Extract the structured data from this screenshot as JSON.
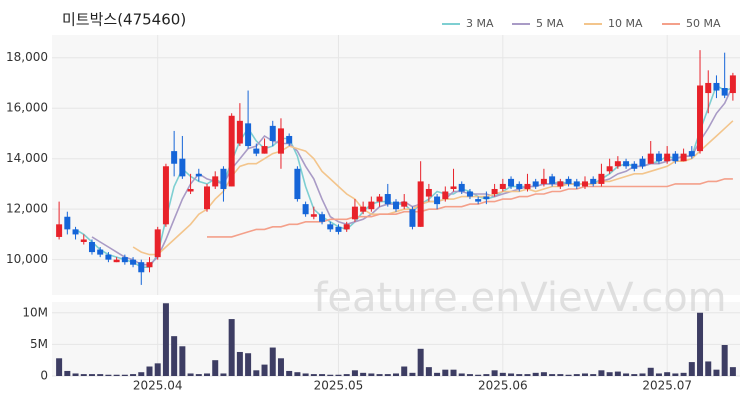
{
  "chart_data": {
    "type": "candlestick",
    "title": "미트박스(475460)",
    "watermark": "feature.enVievV.com",
    "categories": [
      null,
      null,
      null,
      null,
      null,
      null,
      null,
      null,
      null,
      null,
      null,
      null,
      "2025.04",
      null,
      null,
      null,
      null,
      null,
      null,
      null,
      null,
      null,
      null,
      null,
      null,
      null,
      null,
      null,
      null,
      null,
      null,
      null,
      null,
      null,
      "2025.05",
      null,
      null,
      null,
      null,
      null,
      null,
      null,
      null,
      null,
      null,
      null,
      null,
      null,
      null,
      null,
      null,
      null,
      null,
      null,
      "2025.06",
      null,
      null,
      null,
      null,
      null,
      null,
      null,
      null,
      null,
      null,
      null,
      null,
      null,
      null,
      null,
      null,
      null,
      null,
      null,
      "2025.07",
      null,
      null,
      null,
      null,
      null,
      null,
      null,
      null
    ],
    "open": [
      10900,
      11700,
      11200,
      10700,
      10700,
      10400,
      10200,
      9900,
      10100,
      10000,
      9900,
      9700,
      10100,
      11400,
      14300,
      14000,
      12700,
      13400,
      12000,
      12900,
      13600,
      12900,
      14600,
      15400,
      14400,
      14200,
      15300,
      14200,
      14900,
      13600,
      12200,
      11700,
      11800,
      11400,
      11300,
      11200,
      11600,
      11900,
      12000,
      12300,
      12600,
      12300,
      12100,
      12000,
      11300,
      12500,
      12500,
      12400,
      12800,
      13000,
      12700,
      12400,
      12500,
      12600,
      12800,
      13200,
      13000,
      12800,
      13100,
      13000,
      13300,
      12900,
      13200,
      13100,
      12900,
      13200,
      13000,
      13500,
      13700,
      13900,
      13800,
      14000,
      13800,
      14200,
      13900,
      14200,
      13900,
      14300,
      14300,
      16600,
      17000,
      16800,
      16600
    ],
    "high": [
      12300,
      11900,
      11300,
      11000,
      10800,
      10500,
      10300,
      10100,
      10200,
      10100,
      10000,
      10100,
      11300,
      13800,
      15100,
      14900,
      13400,
      13600,
      13000,
      13500,
      13700,
      15800,
      16200,
      16700,
      14600,
      14800,
      15500,
      15600,
      15000,
      13700,
      12300,
      12100,
      11900,
      11500,
      11400,
      11500,
      12400,
      12300,
      12500,
      12600,
      13000,
      12400,
      12600,
      12100,
      13900,
      13000,
      12600,
      12900,
      13600,
      13100,
      12800,
      12500,
      12700,
      13000,
      13200,
      13300,
      13100,
      13400,
      13200,
      13600,
      13400,
      13200,
      13300,
      13200,
      13300,
      13300,
      13800,
      14000,
      14100,
      14000,
      13900,
      14100,
      14700,
      14300,
      14500,
      14300,
      14400,
      14500,
      18300,
      17500,
      17300,
      18200,
      17400
    ],
    "low": [
      10800,
      11000,
      10800,
      10600,
      10200,
      10100,
      9900,
      9900,
      9800,
      9700,
      9000,
      9500,
      10000,
      11300,
      13300,
      13200,
      12600,
      13100,
      11900,
      12800,
      12300,
      12900,
      14500,
      14400,
      14100,
      14200,
      14500,
      13600,
      14500,
      12300,
      11700,
      11600,
      11400,
      11100,
      11000,
      11100,
      11500,
      11800,
      11900,
      12100,
      12100,
      11900,
      12000,
      11200,
      11300,
      12300,
      12000,
      12300,
      12700,
      12600,
      12400,
      12200,
      12200,
      12500,
      12700,
      12800,
      12700,
      12700,
      12800,
      12900,
      12900,
      12800,
      12900,
      12800,
      12800,
      12900,
      12900,
      13400,
      13600,
      13600,
      13500,
      13600,
      13800,
      13800,
      13800,
      13800,
      13900,
      14000,
      14200,
      15800,
      16400,
      16400,
      16300
    ],
    "close": [
      11400,
      11200,
      11000,
      10800,
      10300,
      10200,
      10000,
      10000,
      9900,
      9800,
      9500,
      9900,
      11200,
      13700,
      13800,
      13300,
      12800,
      13300,
      12900,
      13300,
      12800,
      15700,
      15500,
      14500,
      14200,
      14500,
      14700,
      15200,
      14600,
      12400,
      11800,
      11800,
      11500,
      11200,
      11100,
      11400,
      12100,
      12100,
      12300,
      12500,
      12200,
      12000,
      12300,
      11300,
      13100,
      12800,
      12200,
      12700,
      12900,
      12700,
      12500,
      12300,
      12400,
      12800,
      13000,
      12900,
      12800,
      13000,
      12900,
      13200,
      13000,
      13100,
      13000,
      12900,
      13100,
      13000,
      13400,
      13700,
      13900,
      13700,
      13600,
      13700,
      14200,
      13900,
      14200,
      13900,
      14200,
      14100,
      16900,
      17000,
      16700,
      16500,
      17300
    ],
    "up_color": "#e8222a",
    "down_color": "#1565d8",
    "series": [
      {
        "name": "3 MA",
        "color": "#7ecfd2",
        "values": [
          null,
          null,
          11200,
          11000,
          10700,
          10400,
          10200,
          10100,
          10000,
          9900,
          9700,
          9700,
          10200,
          11600,
          12900,
          13600,
          13300,
          13100,
          13000,
          13200,
          13000,
          13900,
          14700,
          15200,
          14700,
          14400,
          14500,
          14800,
          14800,
          14100,
          12900,
          12000,
          11700,
          11500,
          11300,
          11200,
          11500,
          11900,
          12200,
          12300,
          12300,
          12200,
          12200,
          11900,
          12200,
          12400,
          12700,
          12600,
          12600,
          12800,
          12700,
          12500,
          12400,
          12500,
          12700,
          12900,
          12900,
          12900,
          12900,
          13000,
          13000,
          13100,
          13000,
          13000,
          13000,
          13000,
          13200,
          13400,
          13700,
          13800,
          13700,
          13700,
          13800,
          13900,
          14100,
          14000,
          14100,
          14100,
          15100,
          16000,
          16900,
          16700,
          16800
        ]
      },
      {
        "name": "5 MA",
        "color": "#a99bc6",
        "values": [
          null,
          null,
          null,
          null,
          10900,
          10700,
          10500,
          10300,
          10100,
          10000,
          9800,
          9800,
          10100,
          10800,
          11600,
          12400,
          13000,
          13400,
          13200,
          13100,
          13000,
          13600,
          14000,
          14400,
          14500,
          14900,
          14700,
          14600,
          14600,
          14300,
          13700,
          13200,
          12400,
          11700,
          11500,
          11400,
          11500,
          11600,
          11800,
          12100,
          12200,
          12200,
          12300,
          12100,
          12200,
          12300,
          12300,
          12400,
          12700,
          12700,
          12600,
          12600,
          12600,
          12500,
          12600,
          12700,
          12800,
          12900,
          12900,
          13000,
          13000,
          13000,
          13000,
          13000,
          13000,
          13000,
          13100,
          13200,
          13400,
          13500,
          13700,
          13700,
          13800,
          13800,
          13900,
          14000,
          14100,
          14100,
          14700,
          15200,
          15800,
          16200,
          16900
        ]
      },
      {
        "name": "10 MA",
        "color": "#f3c58c",
        "values": [
          null,
          null,
          null,
          null,
          null,
          null,
          null,
          null,
          null,
          10500,
          10300,
          10200,
          10200,
          10500,
          10800,
          11100,
          11400,
          11800,
          12000,
          12400,
          12700,
          13300,
          13700,
          13800,
          13800,
          14000,
          14200,
          14300,
          14500,
          14400,
          14300,
          14000,
          13500,
          13200,
          12900,
          12600,
          12400,
          12000,
          11800,
          11800,
          11800,
          11900,
          12000,
          12000,
          12200,
          12300,
          12300,
          12400,
          12400,
          12500,
          12500,
          12500,
          12500,
          12600,
          12700,
          12700,
          12700,
          12800,
          12700,
          12800,
          12900,
          12900,
          13000,
          13000,
          13000,
          13000,
          13100,
          13100,
          13200,
          13300,
          13400,
          13400,
          13500,
          13600,
          13700,
          13900,
          13900,
          14000,
          14300,
          14600,
          14900,
          15200,
          15500
        ]
      },
      {
        "name": "50 MA",
        "color": "#f4a08a",
        "values": [
          null,
          null,
          null,
          null,
          null,
          null,
          null,
          null,
          null,
          null,
          null,
          null,
          null,
          null,
          null,
          null,
          null,
          null,
          10900,
          10900,
          10900,
          10900,
          11000,
          11100,
          11200,
          11200,
          11300,
          11300,
          11400,
          11400,
          11500,
          11500,
          11500,
          11600,
          11600,
          11600,
          11700,
          11700,
          11700,
          11800,
          11800,
          11800,
          11900,
          11900,
          11900,
          12000,
          12000,
          12100,
          12100,
          12100,
          12200,
          12200,
          12300,
          12300,
          12400,
          12400,
          12500,
          12500,
          12600,
          12600,
          12700,
          12700,
          12800,
          12800,
          12900,
          12900,
          12900,
          12900,
          12900,
          12900,
          12900,
          12900,
          12900,
          12900,
          12900,
          13000,
          13000,
          13000,
          13000,
          13100,
          13100,
          13200,
          13200
        ]
      }
    ],
    "ylim": [
      8600,
      18900
    ],
    "yticks": [
      {
        "value": 10000,
        "label": "10,000"
      },
      {
        "value": 12000,
        "label": "12,000"
      },
      {
        "value": 14000,
        "label": "14,000"
      },
      {
        "value": 16000,
        "label": "16,000"
      },
      {
        "value": 18000,
        "label": "18,000"
      }
    ],
    "grid": true,
    "legend": "top-right",
    "volume": {
      "color": "#3d3d63",
      "values": [
        2800000,
        800000,
        400000,
        300000,
        300000,
        300000,
        200000,
        200000,
        200000,
        300000,
        600000,
        1500000,
        2000000,
        11500000,
        6300000,
        4700000,
        400000,
        300000,
        400000,
        2500000,
        400000,
        9000000,
        3800000,
        3600000,
        900000,
        1800000,
        4500000,
        2800000,
        800000,
        600000,
        400000,
        300000,
        300000,
        200000,
        200000,
        300000,
        900000,
        500000,
        400000,
        300000,
        300000,
        400000,
        1500000,
        500000,
        4300000,
        1400000,
        500000,
        1000000,
        1000000,
        400000,
        300000,
        200000,
        300000,
        900000,
        500000,
        400000,
        300000,
        300000,
        500000,
        600000,
        300000,
        300000,
        200000,
        300000,
        400000,
        300000,
        900000,
        600000,
        700000,
        400000,
        300000,
        400000,
        1300000,
        400000,
        600000,
        400000,
        500000,
        2200000,
        10000000,
        2300000,
        1000000,
        4900000,
        1400000
      ],
      "ylim": [
        0,
        11700000
      ],
      "yticks": [
        0,
        {
          "value": 5000000,
          "label": "5M"
        },
        {
          "value": 10000000,
          "label": "10M"
        }
      ]
    }
  }
}
